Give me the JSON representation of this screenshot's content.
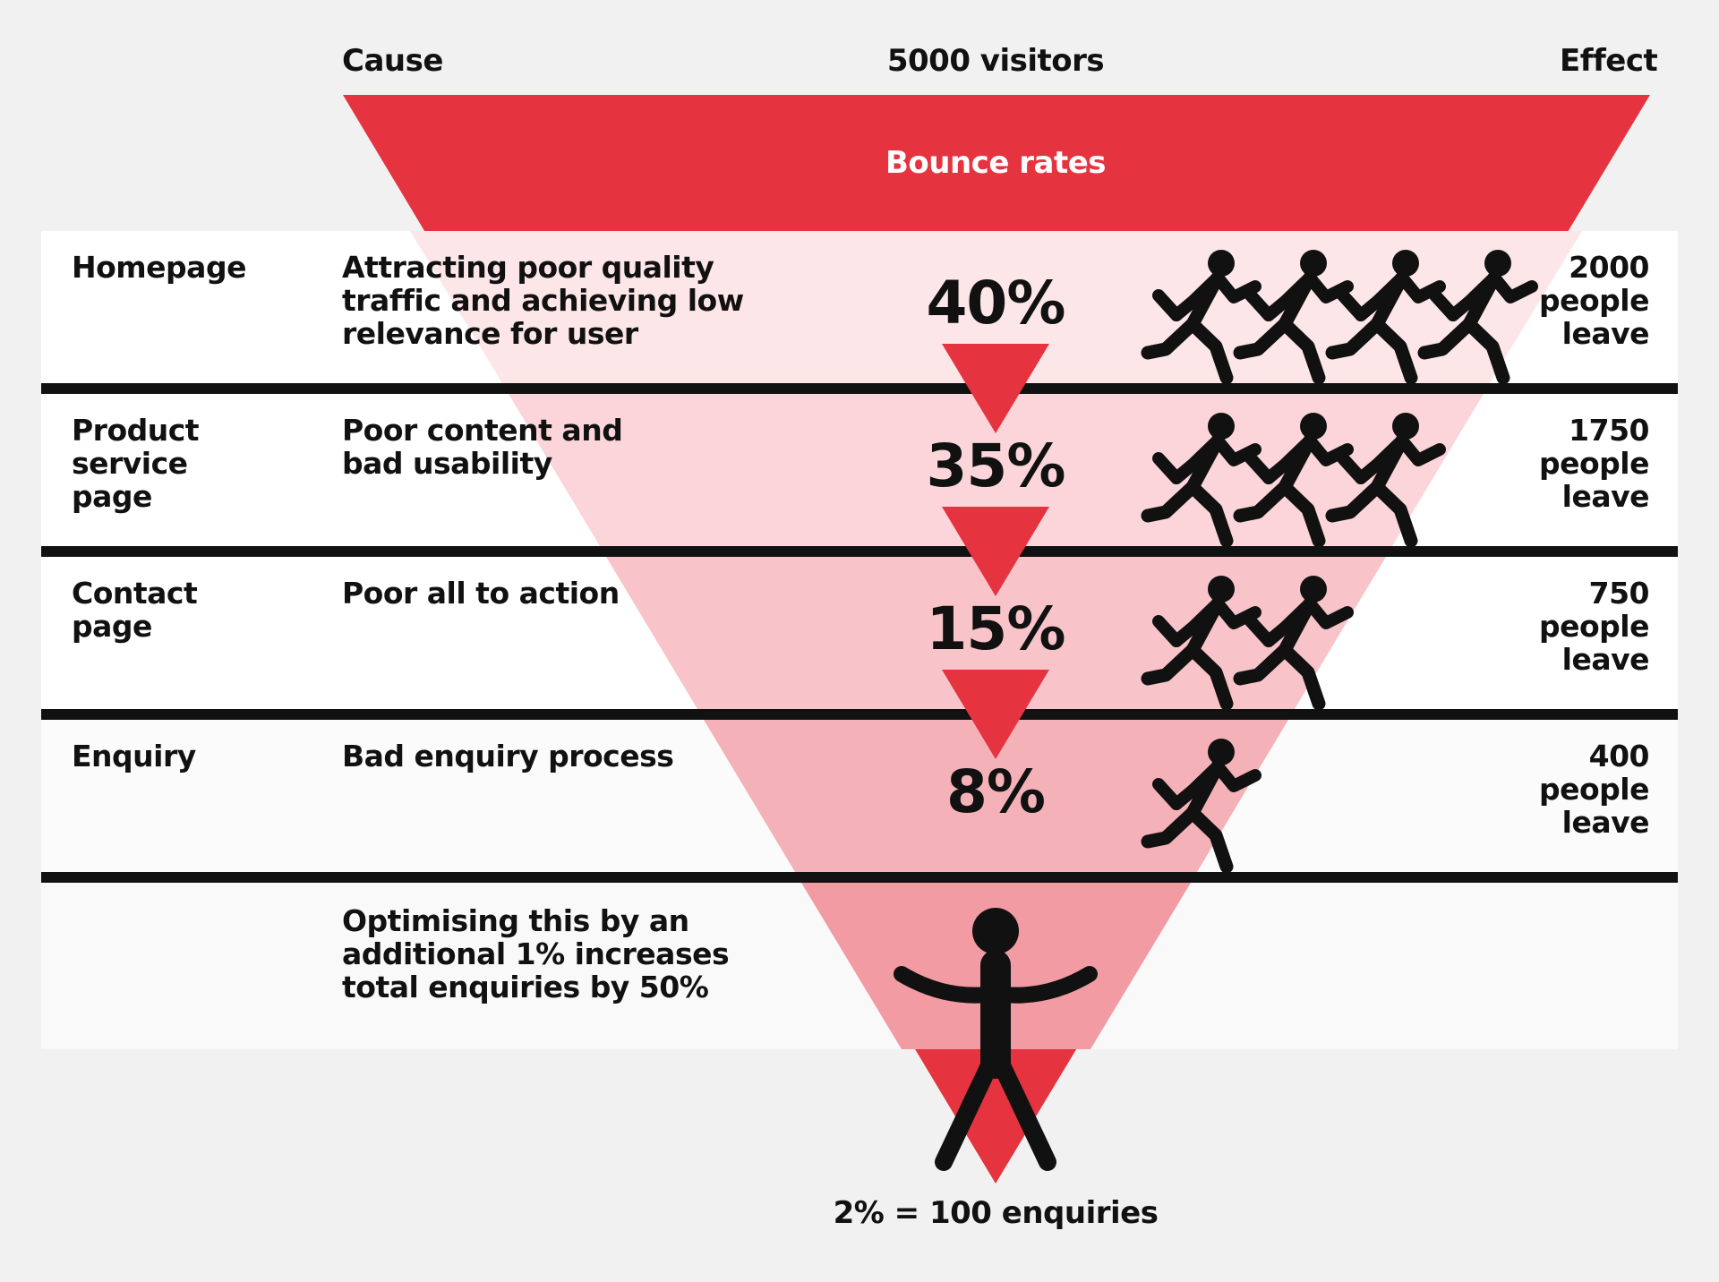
{
  "header": {
    "cause_label": "Cause",
    "visitors_label": "5000 visitors",
    "effect_label": "Effect",
    "bounce_label": "Bounce rates"
  },
  "stages": [
    {
      "page_lines": [
        "Homepage"
      ],
      "cause_lines": [
        "Attracting poor quality",
        "traffic and achieving low",
        "relevance for user"
      ],
      "percent": "40%",
      "runner_count": 4,
      "effect_lines": [
        "2000",
        "people",
        "leave"
      ]
    },
    {
      "page_lines": [
        "Product",
        "service",
        "page"
      ],
      "cause_lines": [
        "Poor content and",
        "bad usability"
      ],
      "percent": "35%",
      "runner_count": 3,
      "effect_lines": [
        "1750",
        "people",
        "leave"
      ]
    },
    {
      "page_lines": [
        "Contact",
        "page"
      ],
      "cause_lines": [
        "Poor all to action"
      ],
      "percent": "15%",
      "runner_count": 2,
      "effect_lines": [
        "750",
        "people",
        "leave"
      ]
    },
    {
      "page_lines": [
        "Enquiry"
      ],
      "cause_lines": [
        "Bad enquiry process"
      ],
      "percent": "8%",
      "runner_count": 1,
      "effect_lines": [
        "400",
        "people",
        "leave"
      ]
    }
  ],
  "conversion": {
    "note_lines": [
      "Optimising this by an",
      "additional 1% increases",
      "total enquiries by 50%"
    ]
  },
  "footer": {
    "result_label": "2% = 100 enquiries"
  },
  "colors": {
    "funnel_red": "#e5333f",
    "row_band": "#ffffff",
    "divider": "#111111",
    "background": "#f1f1f1"
  },
  "icons": {
    "runner": "running-person-icon",
    "converted": "person-arms-up-icon",
    "step_arrow": "triangle-down-icon"
  }
}
